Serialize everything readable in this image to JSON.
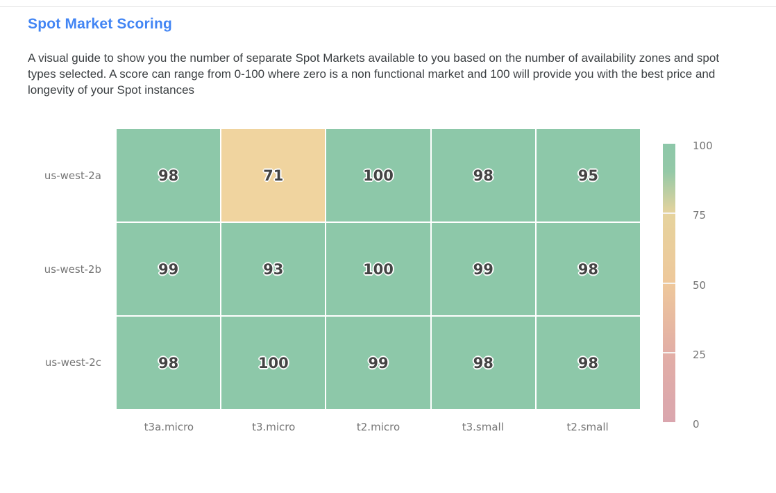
{
  "header": {
    "title": "Spot Market Scoring",
    "description": "A visual guide to show you the number of separate Spot Markets available to you based on the number of availability zones and spot types selected. A score can range from 0-100 where zero is a non functional market and 100 will provide you with the best price and longevity of your Spot instances"
  },
  "chart_data": {
    "type": "heatmap",
    "title": "Spot Market Scoring",
    "x_categories": [
      "t3a.micro",
      "t3.micro",
      "t2.micro",
      "t3.small",
      "t2.small"
    ],
    "y_categories": [
      "us-west-2a",
      "us-west-2b",
      "us-west-2c"
    ],
    "series": [
      {
        "name": "us-west-2a",
        "values": [
          98,
          71,
          100,
          98,
          95
        ]
      },
      {
        "name": "us-west-2b",
        "values": [
          99,
          93,
          100,
          99,
          98
        ]
      },
      {
        "name": "us-west-2c",
        "values": [
          98,
          100,
          99,
          98,
          98
        ]
      }
    ],
    "cell_colors": [
      [
        "#8dc8a9",
        "#f0d49f",
        "#8dc8a9",
        "#8dc8a9",
        "#8dc8a9"
      ],
      [
        "#8dc8a9",
        "#8dc8a9",
        "#8dc8a9",
        "#8dc8a9",
        "#8dc8a9"
      ],
      [
        "#8dc8a9",
        "#8dc8a9",
        "#8dc8a9",
        "#8dc8a9",
        "#8dc8a9"
      ]
    ],
    "value_range": [
      0,
      100
    ],
    "grid": false,
    "colorbar": {
      "position": "right",
      "tick_labels": [
        "100",
        "75",
        "50",
        "25",
        "0"
      ],
      "gradient_stops": [
        {
          "offset": 0.0,
          "color": "#8dc7a9"
        },
        {
          "offset": 0.1,
          "color": "#94c9a7"
        },
        {
          "offset": 0.25,
          "color": "#e6d39d"
        },
        {
          "offset": 0.5,
          "color": "#eec89b"
        },
        {
          "offset": 0.75,
          "color": "#e2aea6"
        },
        {
          "offset": 1.0,
          "color": "#daa6ae"
        }
      ]
    }
  },
  "colors": {
    "title": "#4285f4",
    "description_text": "#3c4043",
    "axis_label": "#757575",
    "cell_value_text": "#444444",
    "cell_gap": "#ffffff",
    "divider": "#ebebeb"
  }
}
